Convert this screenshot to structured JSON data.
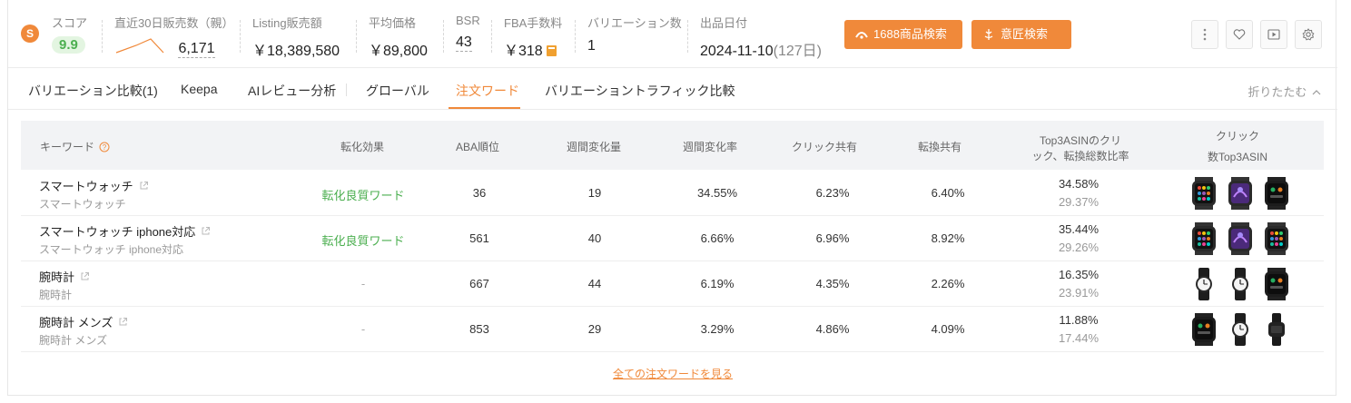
{
  "stats": {
    "logo_glyph": "S",
    "score": {
      "label": "スコア",
      "value": "9.9"
    },
    "sales30": {
      "label": "直近30日販売数（親）",
      "value": "6,171"
    },
    "listing_sales": {
      "label": "Listing販売額",
      "value": "￥18,389,580"
    },
    "avg_price": {
      "label": "平均価格",
      "value": "￥89,800"
    },
    "bsr": {
      "label": "BSR",
      "value": "43"
    },
    "fba": {
      "label": "FBA手数料",
      "value": "￥318"
    },
    "variations": {
      "label": "バリエーション数",
      "value": "1"
    },
    "release": {
      "label": "出品日付",
      "value": "2024-11-10",
      "days": "(127日)"
    }
  },
  "buttons": {
    "search_1688": "1688商品検索",
    "design_search": "意匠検索"
  },
  "tabs": [
    {
      "label": "バリエーション比較(1)"
    },
    {
      "label": "Keepa"
    },
    {
      "label": "AIレビュー分析"
    },
    {
      "label": "グローバル"
    },
    {
      "label": "注文ワード",
      "active": true
    },
    {
      "label": "バリエーショントラフィック比較"
    }
  ],
  "collapse_label": "折りたたむ",
  "table": {
    "headers": {
      "keyword": "キーワード",
      "conversion": "転化効果",
      "aba": "ABA順位",
      "weekly_change": "週間変化量",
      "weekly_rate": "週間変化率",
      "click_share": "クリック共有",
      "conv_share": "転換共有",
      "top3_line1": "Top3ASINのクリ",
      "top3_line2": "ック、転換総数比率",
      "click_top3_line1": "クリック",
      "click_top3_line2": "数Top3ASIN"
    },
    "rows": [
      {
        "keyword": "スマートウォッチ",
        "sub": "スマートウォッチ",
        "conversion": "転化良質ワード",
        "aba": "36",
        "weekly_change": "19",
        "weekly_rate": "34.55%",
        "click_share": "6.23%",
        "conv_share": "6.40%",
        "top3_click": "34.58%",
        "top3_conv": "29.37%",
        "thumbs": [
          "smartwatch-colorful",
          "smartwatch-purple",
          "smartwatch-dark"
        ]
      },
      {
        "keyword": "スマートウォッチ iphone対応",
        "sub": "スマートウォッチ iphone対応",
        "conversion": "転化良質ワード",
        "aba": "561",
        "weekly_change": "40",
        "weekly_rate": "6.66%",
        "click_share": "6.96%",
        "conv_share": "8.92%",
        "top3_click": "35.44%",
        "top3_conv": "29.26%",
        "thumbs": [
          "smartwatch-colorful",
          "smartwatch-purple",
          "smartwatch-colorful"
        ]
      },
      {
        "keyword": "腕時計",
        "sub": "腕時計",
        "conversion": "-",
        "aba": "667",
        "weekly_change": "44",
        "weekly_rate": "6.19%",
        "click_share": "4.35%",
        "conv_share": "2.26%",
        "top3_click": "16.35%",
        "top3_conv": "23.91%",
        "thumbs": [
          "analog-watch",
          "analog-watch",
          "smartwatch-dark"
        ]
      },
      {
        "keyword": "腕時計 メンズ",
        "sub": "腕時計 メンズ",
        "conversion": "-",
        "aba": "853",
        "weekly_change": "29",
        "weekly_rate": "3.29%",
        "click_share": "4.86%",
        "conv_share": "4.09%",
        "top3_click": "11.88%",
        "top3_conv": "17.44%",
        "thumbs": [
          "smartwatch-dark",
          "analog-watch",
          "digital-watch"
        ]
      }
    ]
  },
  "see_all_link": "全ての注文ワードを見る",
  "colors": {
    "accent": "#f0893a",
    "good": "#4caf50",
    "score_bg": "#e3f5e1"
  }
}
